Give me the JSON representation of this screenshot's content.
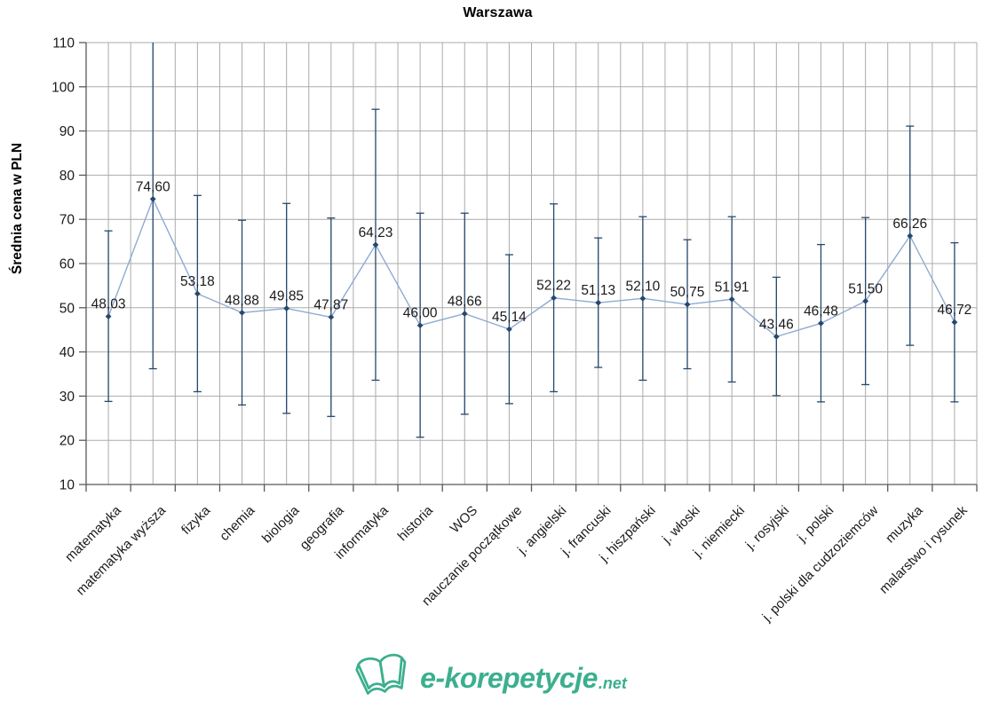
{
  "logo": {
    "text": "e-korepetycje",
    "suffix": ".net",
    "color": "#3BAF8E"
  },
  "colors": {
    "line": "#8FABD3",
    "marker": "#26486E",
    "error_bar": "#26486E",
    "gridline": "#ABABAB",
    "axis": "#595959",
    "text": "#1A1A1A"
  },
  "chart_data": {
    "type": "line",
    "title": "Warszawa",
    "xlabel": "",
    "ylabel": "Średnia cena w PLN",
    "ylim": [
      10,
      110
    ],
    "ytick_step": 10,
    "ytick_labels": [
      "110",
      "100",
      "90",
      "80",
      "70",
      "60",
      "50",
      "40",
      "30",
      "20",
      "10"
    ],
    "grid": true,
    "legend_position": "none",
    "decimal_separator": ",",
    "categories": [
      "matematyka",
      "matematyka wyższa",
      "fizyka",
      "chemia",
      "biologia",
      "geografia",
      "informatyka",
      "historia",
      "WOS",
      "nauczanie początkowe",
      "j. angielski",
      "j. francuski",
      "j. hiszpański",
      "j. włoski",
      "j. niemiecki",
      "j. rosyjski",
      "j. polski",
      "j. polski dla cudzoziemców",
      "muzyka",
      "malarstwo i rysunek"
    ],
    "series": [
      {
        "values": [
          48.03,
          74.6,
          53.18,
          48.88,
          49.85,
          47.87,
          64.23,
          46.0,
          48.66,
          45.14,
          52.22,
          51.13,
          52.1,
          50.75,
          51.91,
          43.46,
          46.48,
          51.5,
          66.26,
          46.72
        ],
        "data_labels": [
          "48,03",
          "74,60",
          "53,18",
          "48,88",
          "49,85",
          "47,87",
          "64,23",
          "46,00",
          "48,66",
          "45,14",
          "52,22",
          "51,13",
          "52,10",
          "50,75",
          "51,91",
          "43,46",
          "46,48",
          "51,50",
          "66,26",
          "46,72"
        ],
        "error_bar_low": [
          28.8,
          36.2,
          31.0,
          28.0,
          26.1,
          25.4,
          33.6,
          20.7,
          25.9,
          28.3,
          31.0,
          36.5,
          33.6,
          36.2,
          33.2,
          30.1,
          28.7,
          32.6,
          41.5,
          28.7
        ],
        "error_bar_high": [
          67.4,
          113.0,
          75.4,
          69.8,
          73.6,
          70.3,
          94.9,
          71.4,
          71.4,
          62.0,
          73.5,
          65.8,
          70.6,
          65.4,
          70.6,
          56.9,
          64.3,
          70.4,
          91.1,
          64.7
        ]
      }
    ]
  }
}
